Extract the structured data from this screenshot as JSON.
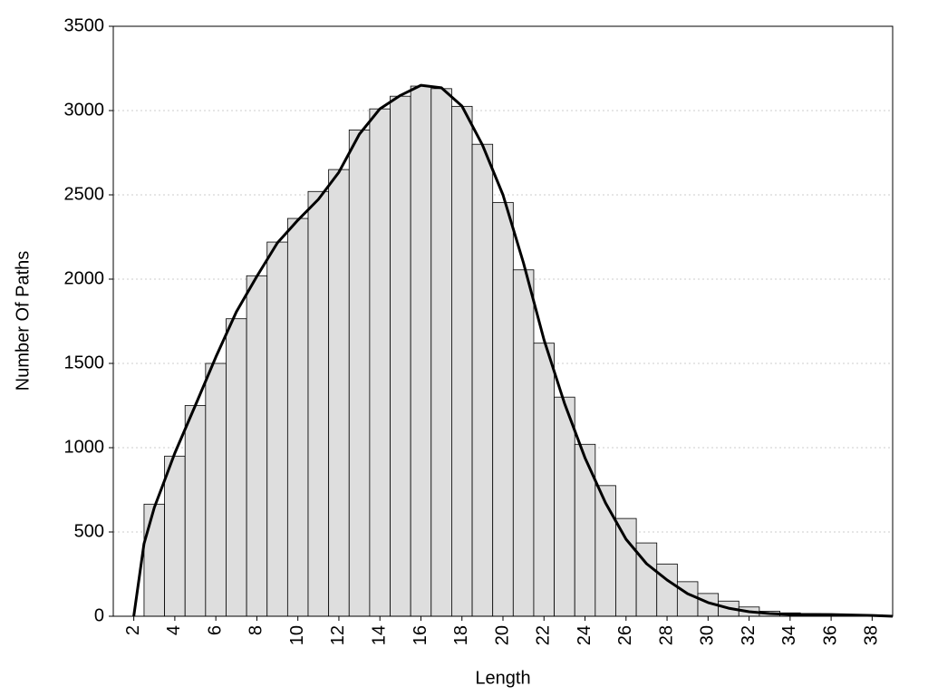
{
  "chart_data": {
    "type": "histogram",
    "xlabel": "Length",
    "ylabel": "Number Of Paths",
    "bins": [
      2.5,
      3.5,
      4.5,
      5.5,
      6.5,
      7.5,
      8.5,
      9.5,
      10.5,
      11.5,
      12.5,
      13.5,
      14.5,
      15.5,
      16.5,
      17.5,
      18.5,
      19.5,
      20.5,
      21.5,
      22.5,
      23.5,
      24.5,
      25.5,
      26.5,
      27.5,
      28.5,
      29.5,
      30.5,
      31.5,
      32.5,
      33.5,
      34.5,
      35.5,
      36.5,
      37.5,
      38.5
    ],
    "values": [
      665,
      950,
      1250,
      1500,
      1765,
      2020,
      2220,
      2360,
      2520,
      2650,
      2885,
      3010,
      3085,
      3145,
      3130,
      3025,
      2800,
      2455,
      2055,
      1620,
      1300,
      1020,
      775,
      580,
      435,
      310,
      205,
      135,
      90,
      55,
      30,
      20,
      15,
      10,
      10,
      8
    ],
    "color": "#dedede",
    "curve": {
      "color": "#000000",
      "x": [
        2,
        2.5,
        3,
        3.5,
        4,
        5,
        6,
        7,
        8,
        9,
        10,
        11,
        12,
        13,
        14,
        15,
        16,
        17,
        18,
        19,
        20,
        21,
        22,
        23,
        24,
        25,
        26,
        27,
        28,
        29,
        30,
        31,
        32,
        33,
        34,
        36,
        38,
        39
      ],
      "values": [
        0,
        430,
        645,
        806,
        968,
        1250,
        1538,
        1806,
        2016,
        2215,
        2350,
        2473,
        2634,
        2860,
        3010,
        3090,
        3150,
        3135,
        3027,
        2795,
        2500,
        2097,
        1640,
        1263,
        940,
        672,
        457,
        312,
        215,
        134,
        81,
        48,
        27,
        16,
        11,
        10,
        5,
        0
      ]
    },
    "xlim": [
      1,
      39
    ],
    "ylim": [
      0,
      3500
    ],
    "xticks": [
      2,
      4,
      6,
      8,
      10,
      12,
      14,
      16,
      18,
      20,
      22,
      24,
      26,
      28,
      30,
      32,
      34,
      36,
      38
    ],
    "yticks": [
      0,
      500,
      1000,
      1500,
      2000,
      2500,
      3000,
      3500
    ],
    "grid": true
  }
}
